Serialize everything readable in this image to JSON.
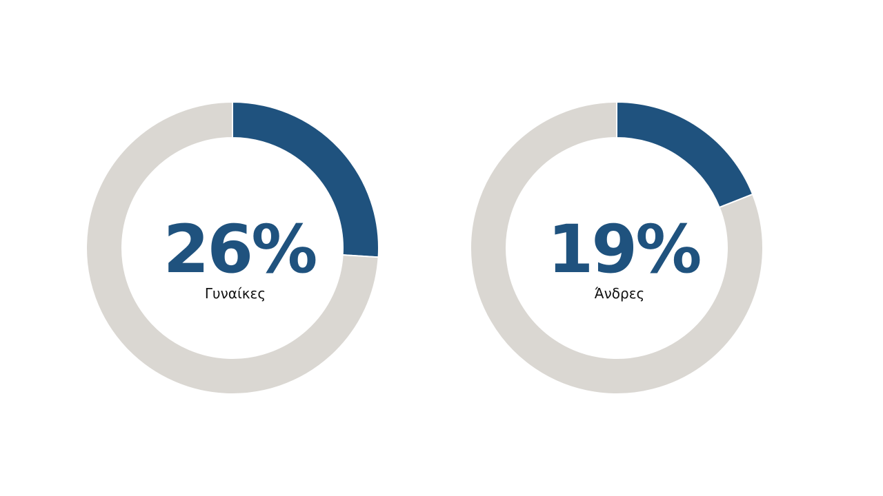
{
  "chart_data": [
    {
      "type": "donut",
      "values": [
        26,
        74
      ],
      "value_labels": [
        "26%",
        null
      ],
      "colors": [
        "#1f527e",
        "#dad7d2"
      ],
      "label": "Γυναίκες"
    },
    {
      "type": "donut",
      "values": [
        19,
        81
      ],
      "value_labels": [
        "19%",
        null
      ],
      "colors": [
        "#1f527e",
        "#dad7d2"
      ],
      "label": "Άνδρες"
    }
  ]
}
